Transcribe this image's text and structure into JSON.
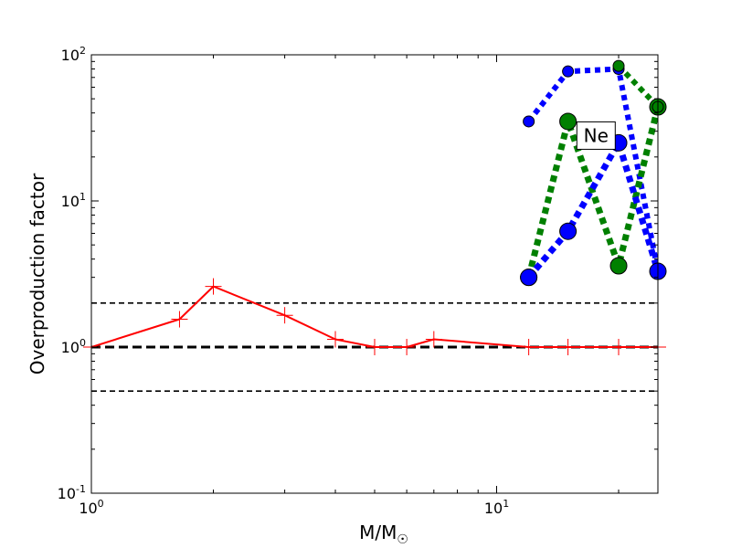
{
  "chart_data": {
    "type": "line",
    "title": "",
    "xlabel": "M/M",
    "xlabel_subscript": "☉",
    "ylabel": "Overproduction factor",
    "xscale": "log",
    "yscale": "log",
    "xlim": [
      1,
      25
    ],
    "ylim": [
      0.1,
      100
    ],
    "grid": false,
    "legend": "none",
    "x_ticks": [
      {
        "value": 1,
        "base": "10",
        "exp": "0"
      },
      {
        "value": 10,
        "base": "10",
        "exp": "1"
      }
    ],
    "y_ticks": [
      {
        "value": 0.1,
        "base": "10",
        "exp": "-1"
      },
      {
        "value": 1,
        "base": "10",
        "exp": "0"
      },
      {
        "value": 10,
        "base": "10",
        "exp": "1"
      },
      {
        "value": 100,
        "base": "10",
        "exp": "2"
      }
    ],
    "reference_lines": [
      {
        "y": 2.0,
        "color": "#000000",
        "style": "dashed"
      },
      {
        "y": 1.0,
        "color": "#000000",
        "style": "dashed-thick"
      },
      {
        "y": 0.5,
        "color": "#000000",
        "style": "dashed"
      }
    ],
    "series": [
      {
        "color": "#ff0000",
        "line": "solid",
        "marker": "plus",
        "x": [
          1,
          1.65,
          2,
          3,
          4,
          5,
          6,
          7,
          12,
          15,
          20,
          25
        ],
        "y": [
          1.0,
          1.55,
          2.6,
          1.65,
          1.13,
          1.0,
          1.0,
          1.13,
          1.0,
          1.0,
          1.0,
          1.0
        ]
      },
      {
        "color": "#0000ff",
        "line": "dotted",
        "marker": "circle-small",
        "x": [
          12,
          15,
          20,
          25
        ],
        "y": [
          35,
          77,
          80,
          3.3
        ]
      },
      {
        "color": "#008000",
        "line": "dotted",
        "marker": "circle-large",
        "x": [
          12,
          15,
          20,
          25
        ],
        "y": [
          3.0,
          35,
          3.6,
          44
        ]
      },
      {
        "color": "#008000",
        "line": "dotted",
        "marker": "circle-small",
        "x": [
          20,
          25
        ],
        "y": [
          84,
          44
        ]
      },
      {
        "color": "#0000ff",
        "line": "dotted",
        "marker": "circle-large",
        "x": [
          12,
          15,
          20,
          25
        ],
        "y": [
          3.0,
          6.2,
          25,
          3.3
        ]
      }
    ],
    "annotations": [
      {
        "text": "Ne",
        "x": 17.5,
        "y": 28
      }
    ]
  }
}
